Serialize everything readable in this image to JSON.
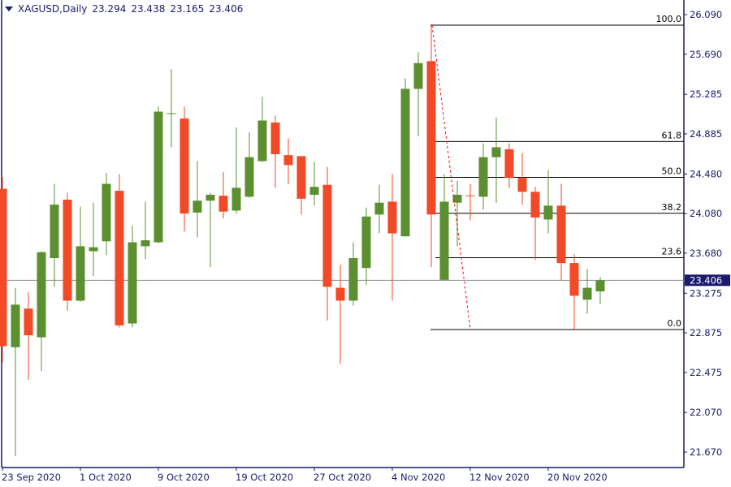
{
  "header": {
    "symbol_timeframe": "XAGUSD,Daily",
    "open": "23.294",
    "high": "23.438",
    "low": "23.165",
    "close": "23.406"
  },
  "colors": {
    "bull": "#5b8f30",
    "bear": "#f24a26",
    "frame": "#1a1a6e",
    "price_line": "#8a9099",
    "fib": "#000000",
    "trendline": "#ff0000"
  },
  "chart_data": {
    "type": "candlestick",
    "symbol": "XAGUSD",
    "timeframe": "Daily",
    "ylim": [
      21.63,
      26.23
    ],
    "y_ticks": [
      "26.090",
      "25.690",
      "25.285",
      "24.885",
      "24.480",
      "24.080",
      "23.680",
      "23.275",
      "22.875",
      "22.475",
      "22.070",
      "21.670"
    ],
    "x_ticks": [
      {
        "index": 0,
        "label": "23 Sep 2020"
      },
      {
        "index": 6,
        "label": "1 Oct 2020"
      },
      {
        "index": 12,
        "label": "9 Oct 2020"
      },
      {
        "index": 18,
        "label": "19 Oct 2020"
      },
      {
        "index": 24,
        "label": "27 Oct 2020"
      },
      {
        "index": 30,
        "label": "4 Nov 2020"
      },
      {
        "index": 36,
        "label": "12 Nov 2020"
      },
      {
        "index": 42,
        "label": "20 Nov 2020"
      }
    ],
    "ohlc": [
      [
        24.33,
        24.45,
        22.57,
        22.74
      ],
      [
        22.73,
        23.33,
        21.63,
        23.16
      ],
      [
        23.12,
        23.29,
        22.4,
        22.85
      ],
      [
        22.83,
        23.7,
        22.49,
        23.69
      ],
      [
        23.63,
        24.38,
        23.34,
        24.17
      ],
      [
        24.22,
        24.29,
        23.1,
        23.2
      ],
      [
        23.2,
        24.15,
        23.19,
        23.75
      ],
      [
        23.7,
        24.19,
        23.45,
        23.74
      ],
      [
        23.8,
        24.49,
        23.66,
        24.38
      ],
      [
        24.31,
        24.48,
        22.93,
        22.95
      ],
      [
        22.97,
        23.96,
        22.93,
        23.79
      ],
      [
        23.75,
        24.2,
        23.62,
        23.81
      ],
      [
        23.79,
        25.16,
        23.78,
        25.11
      ],
      [
        25.08,
        25.54,
        24.75,
        25.09
      ],
      [
        25.04,
        25.16,
        23.9,
        24.08
      ],
      [
        24.09,
        24.61,
        23.84,
        24.21
      ],
      [
        24.21,
        24.29,
        23.54,
        24.27
      ],
      [
        24.26,
        24.5,
        24.03,
        24.1
      ],
      [
        24.11,
        24.95,
        24.08,
        24.34
      ],
      [
        24.25,
        24.9,
        24.24,
        24.65
      ],
      [
        24.61,
        25.26,
        24.6,
        25.02
      ],
      [
        25.0,
        25.07,
        24.34,
        24.68
      ],
      [
        24.67,
        24.84,
        24.38,
        24.57
      ],
      [
        24.66,
        24.66,
        24.07,
        24.23
      ],
      [
        24.27,
        24.6,
        24.16,
        24.35
      ],
      [
        24.37,
        24.55,
        23.0,
        23.34
      ],
      [
        23.33,
        23.56,
        22.56,
        23.2
      ],
      [
        23.2,
        23.79,
        23.15,
        23.63
      ],
      [
        23.53,
        24.14,
        23.36,
        24.05
      ],
      [
        24.07,
        24.37,
        23.88,
        24.19
      ],
      [
        24.2,
        24.48,
        23.2,
        23.88
      ],
      [
        23.85,
        25.45,
        23.85,
        25.34
      ],
      [
        25.34,
        25.71,
        24.86,
        25.6
      ],
      [
        25.62,
        25.98,
        23.54,
        24.07
      ],
      [
        23.41,
        24.48,
        23.41,
        24.2
      ],
      [
        24.19,
        24.41,
        23.75,
        24.27
      ],
      [
        24.26,
        24.38,
        24.01,
        24.25
      ],
      [
        24.25,
        24.79,
        24.12,
        24.65
      ],
      [
        24.65,
        25.05,
        24.19,
        24.75
      ],
      [
        24.73,
        24.79,
        24.34,
        24.44
      ],
      [
        24.44,
        24.69,
        24.17,
        24.3
      ],
      [
        24.3,
        24.35,
        23.61,
        24.04
      ],
      [
        24.02,
        24.52,
        23.88,
        24.16
      ],
      [
        24.16,
        24.38,
        23.41,
        23.58
      ],
      [
        23.58,
        23.67,
        22.91,
        23.25
      ],
      [
        23.21,
        23.52,
        23.07,
        23.33
      ],
      [
        23.294,
        23.438,
        23.165,
        23.406
      ]
    ],
    "current_price": "23.406",
    "fibonacci": {
      "from_index": 33,
      "high": 25.983,
      "low": 22.908,
      "levels": [
        {
          "label": "100.0",
          "value": 25.983
        },
        {
          "label": "61.8",
          "value": 24.808
        },
        {
          "label": "50.0",
          "value": 24.446
        },
        {
          "label": "38.2",
          "value": 24.083
        },
        {
          "label": "23.6",
          "value": 23.634
        },
        {
          "label": "0.0",
          "value": 22.908
        }
      ]
    },
    "trendline": {
      "from": {
        "index": 33,
        "price": 25.983
      },
      "to": {
        "index": 36,
        "price": 22.908
      },
      "style": "dotted"
    }
  }
}
